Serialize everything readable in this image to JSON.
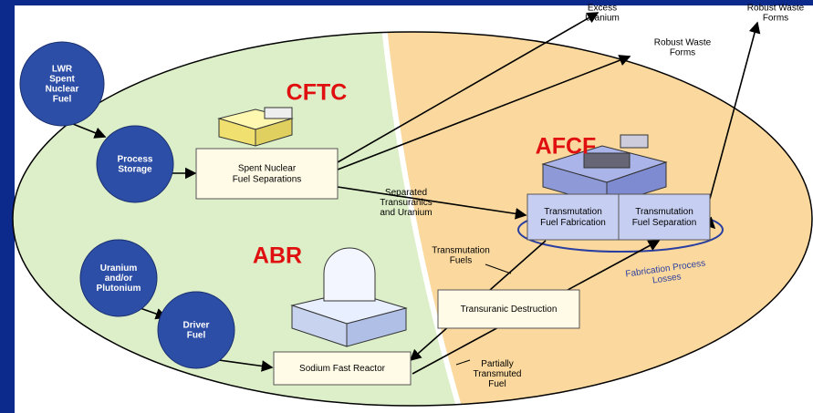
{
  "regions": {
    "cftc": "CFTC",
    "afcf": "AFCF",
    "abr": "ABR"
  },
  "nodes": [
    {
      "label": [
        "LWR",
        "Spent",
        "Nuclear",
        "Fuel"
      ]
    },
    {
      "label": [
        "Process",
        "Storage"
      ]
    },
    {
      "label": [
        "Spent Nuclear",
        "Fuel Separations"
      ]
    },
    {
      "label": [
        "Transmutation",
        "Fuel Fabrication"
      ]
    },
    {
      "label": [
        "Transmutation",
        "Fuel Separation"
      ]
    },
    {
      "label": [
        "Transuranic Destruction"
      ]
    },
    {
      "label": [
        "Uranium",
        "and/or",
        "Plutonium"
      ]
    },
    {
      "label": [
        "Driver",
        "Fuel"
      ]
    },
    {
      "label": [
        "Sodium Fast Reactor"
      ]
    }
  ],
  "outputs": [
    {
      "label": [
        "Excess",
        "Uranium"
      ]
    },
    {
      "label": [
        "Robust Waste",
        "Forms"
      ]
    },
    {
      "label": [
        "Robust Waste",
        "Forms"
      ]
    }
  ],
  "edge_labels": [
    {
      "label": [
        "Separated",
        "Transuranics",
        "and Uranium"
      ]
    },
    {
      "label": [
        "Transmutation",
        "Fuels"
      ]
    },
    {
      "label": [
        "Fabrication Process",
        "Losses"
      ]
    },
    {
      "label": [
        "Partially",
        "Transmuted",
        "Fuel"
      ]
    }
  ]
}
